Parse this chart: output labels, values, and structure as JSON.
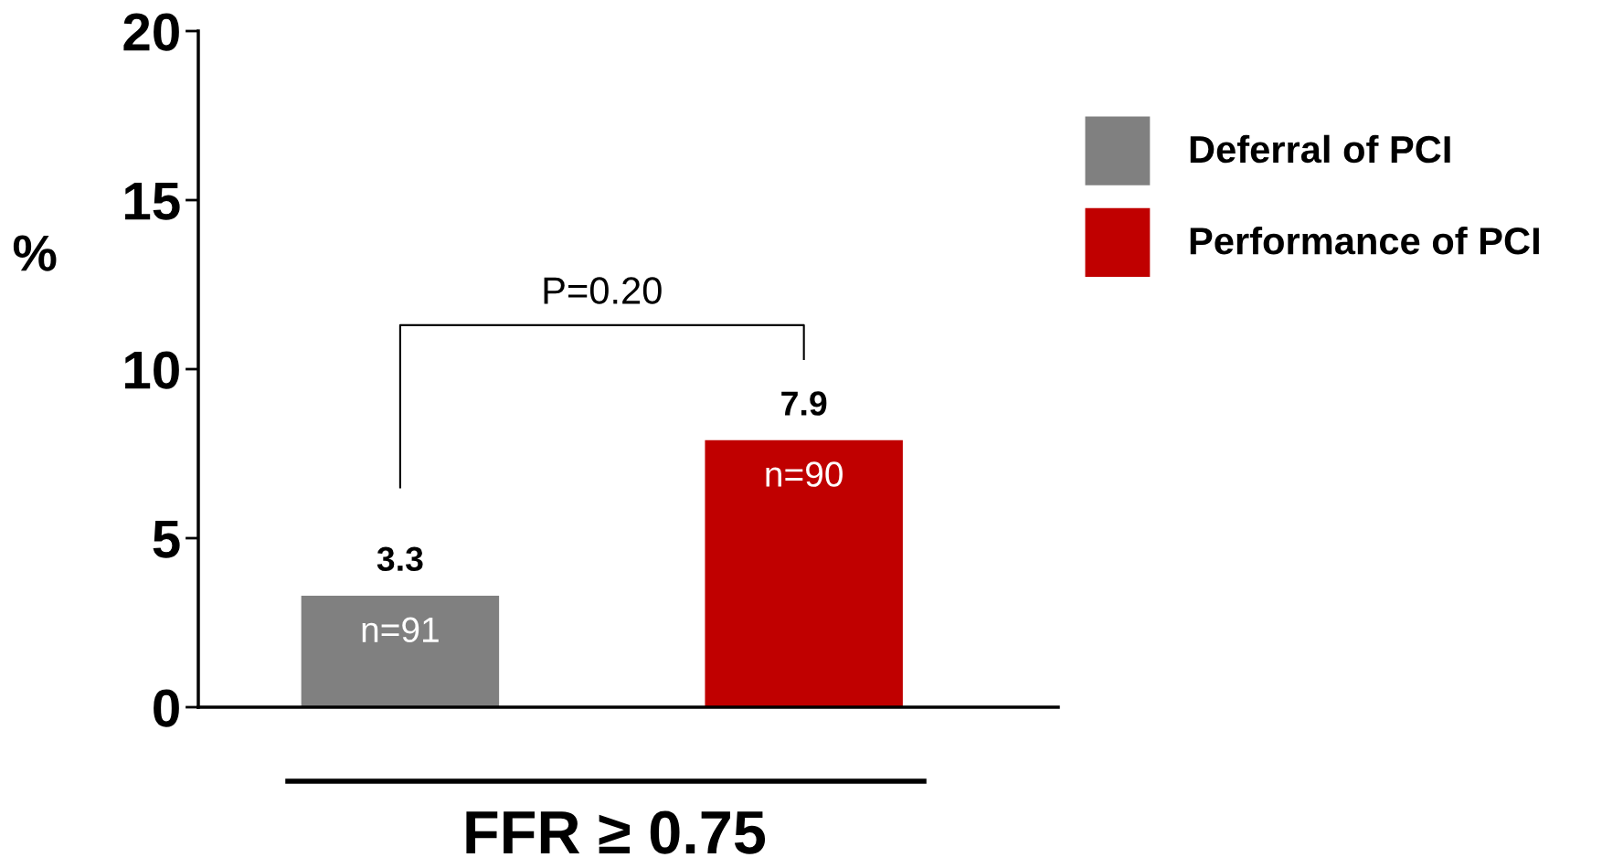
{
  "chart_data": {
    "type": "bar",
    "categories": [
      null,
      null
    ],
    "series": [
      {
        "name": "Deferral of PCI",
        "color": "#808080",
        "values": [
          3.3,
          null
        ]
      },
      {
        "name": "Performance of PCI",
        "color": "#c00000",
        "values": [
          null,
          7.9
        ]
      }
    ],
    "xlabel": "FFR ≥ 0.75",
    "ylabel": "%",
    "ylim": [
      0,
      20
    ],
    "yticks": [
      0,
      5,
      10,
      15,
      20
    ],
    "data_labels": true,
    "grid": false,
    "legend": "right",
    "annotations": [
      "n=91",
      "n=90",
      "P=0.20"
    ]
  }
}
